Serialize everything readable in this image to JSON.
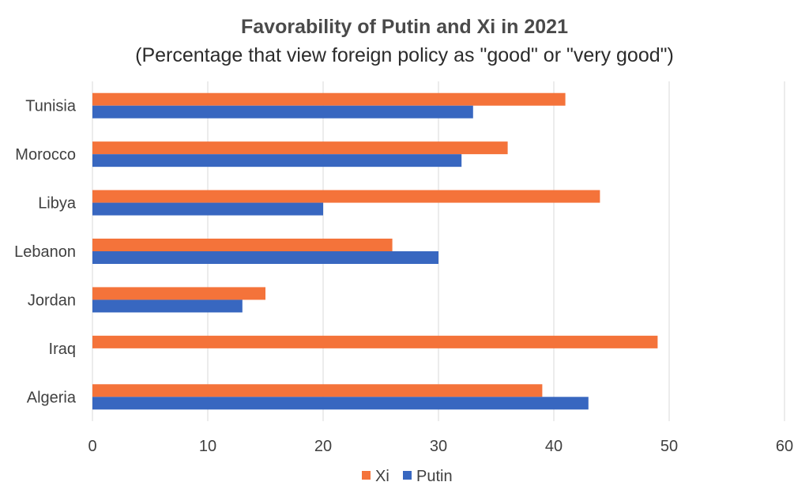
{
  "chart_data": {
    "type": "bar",
    "orientation": "horizontal",
    "title": "Favorability of Putin and Xi in 2021",
    "subtitle": "(Percentage that view foreign policy as \"good\" or \"very good\")",
    "categories": [
      "Tunisia",
      "Morocco",
      "Libya",
      "Lebanon",
      "Jordan",
      "Iraq",
      "Algeria"
    ],
    "series": [
      {
        "name": "Xi",
        "color": "#f4733a",
        "values": [
          41,
          36,
          44,
          26,
          15,
          49,
          39
        ]
      },
      {
        "name": "Putin",
        "color": "#3867c0",
        "values": [
          33,
          32,
          20,
          30,
          13,
          0,
          43
        ]
      }
    ],
    "xlim": [
      0,
      60
    ],
    "xticks": [
      0,
      10,
      20,
      30,
      40,
      50,
      60
    ],
    "grid": "vertical",
    "legend_position": "bottom"
  }
}
